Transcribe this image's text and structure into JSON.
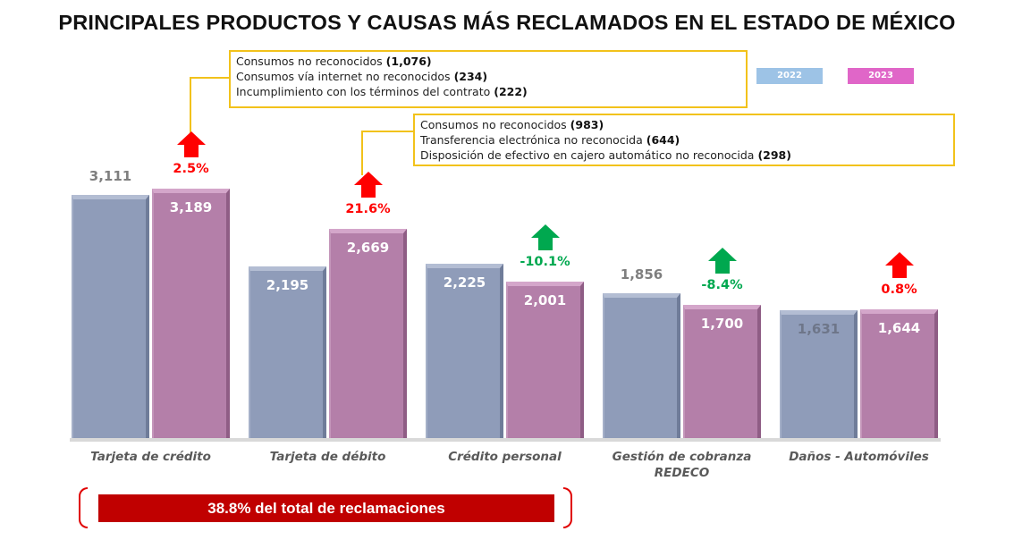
{
  "chart_data": {
    "type": "bar",
    "title": "PRINCIPALES PRODUCTOS Y CAUSAS MÁS RECLAMADOS EN EL ESTADO DE MÉXICO",
    "categories": [
      "Tarjeta de crédito",
      "Tarjeta de débito",
      "Crédito personal",
      "Gestión de cobranza REDECO",
      "Daños - Automóviles"
    ],
    "series": [
      {
        "name": "2022",
        "color": "#8f9cb9",
        "values": [
          3111,
          2195,
          2225,
          1856,
          1631
        ],
        "labels": [
          "3,111",
          "2,195",
          "2,225",
          "1,856",
          "1,631"
        ]
      },
      {
        "name": "2023",
        "color": "#b47fa9",
        "values": [
          3189,
          2669,
          2001,
          1700,
          1644
        ],
        "labels": [
          "3,189",
          "2,669",
          "2,001",
          "1,700",
          "1,644"
        ]
      }
    ],
    "changes": [
      {
        "label": "2.5%",
        "value": 2.5,
        "color": "#ff0000"
      },
      {
        "label": "21.6%",
        "value": 21.6,
        "color": "#ff0000"
      },
      {
        "label": "-10.1%",
        "value": -10.1,
        "color": "#00a84f"
      },
      {
        "label": "-8.4%",
        "value": -8.4,
        "color": "#00a84f"
      },
      {
        "label": "0.8%",
        "value": 0.8,
        "color": "#ff0000"
      }
    ],
    "legend": [
      {
        "label": "2022",
        "color": "#9dc3e6"
      },
      {
        "label": "2023",
        "color": "#e066c8"
      }
    ],
    "xlabel": "",
    "ylabel": "",
    "ylim": [
      0,
      3189
    ],
    "grid": false,
    "legend_placement": "top-right"
  },
  "callouts": [
    {
      "category": "Tarjeta de crédito",
      "items": [
        {
          "text": "Consumos no reconocidos",
          "count": "(1,076)"
        },
        {
          "text": "Consumos vía internet no reconocidos",
          "count": "(234)"
        },
        {
          "text": "Incumplimiento con los términos del contrato",
          "count": "(222)"
        }
      ]
    },
    {
      "category": "Tarjeta de débito",
      "items": [
        {
          "text": "Consumos no reconocidos",
          "count": "(983)"
        },
        {
          "text": "Transferencia electrónica no reconocida",
          "count": "(644)"
        },
        {
          "text": "Disposición de efectivo en cajero automático no reconocida",
          "count": "(298)"
        }
      ]
    }
  ],
  "banner": "38.8% del total de reclamaciones",
  "category_lines": [
    [
      "Tarjeta de crédito"
    ],
    [
      "Tarjeta de débito"
    ],
    [
      "Crédito personal"
    ],
    [
      "Gestión de cobranza",
      "REDECO"
    ],
    [
      "Daños - Automóviles"
    ]
  ]
}
